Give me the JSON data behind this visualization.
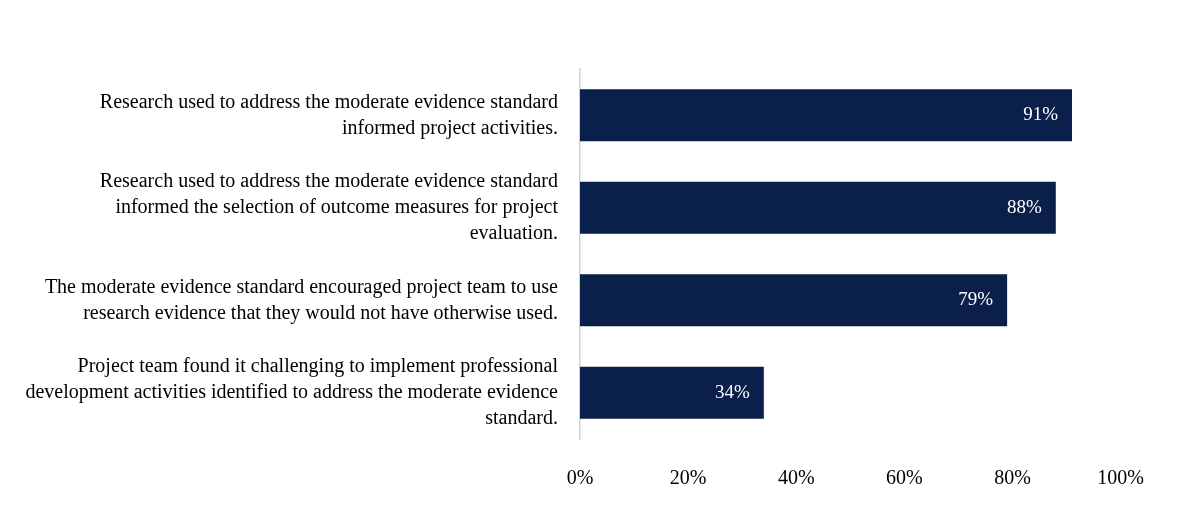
{
  "chart_data": {
    "type": "bar",
    "orientation": "horizontal",
    "categories": [
      "Research used to address the moderate evidence standard informed project activities.",
      "Research used to address the moderate evidence standard informed the selection of outcome measures for project evaluation.",
      "The moderate evidence standard encouraged project team to use research evidence that they would not have otherwise used.",
      "Project team found it challenging to implement professional development activities identified to address the moderate evidence standard."
    ],
    "values": [
      91,
      88,
      79,
      34
    ],
    "value_labels": [
      "91%",
      "88%",
      "79%",
      "34%"
    ],
    "color": "#0b1f4b",
    "xlim": [
      0,
      100
    ],
    "xticks": [
      {
        "value": 0,
        "label": "0%"
      },
      {
        "value": 20,
        "label": "20%"
      },
      {
        "value": 40,
        "label": "40%"
      },
      {
        "value": 60,
        "label": "60%"
      },
      {
        "value": 80,
        "label": "80%"
      },
      {
        "value": 100,
        "label": "100%"
      }
    ],
    "grid": false,
    "legend": false
  }
}
